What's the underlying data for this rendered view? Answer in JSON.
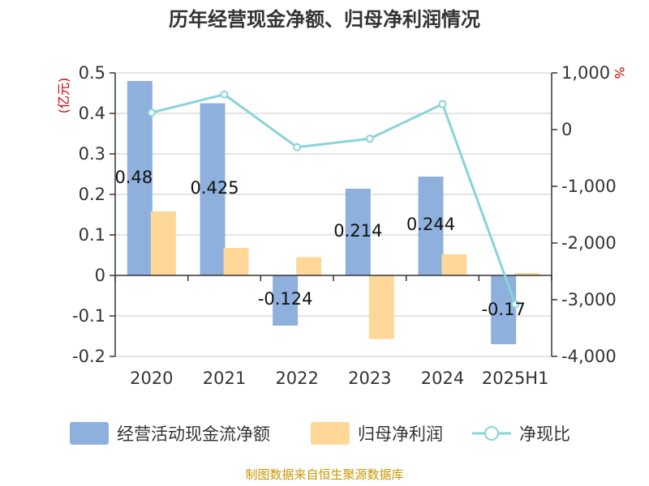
{
  "chart_data": {
    "type": "bar",
    "title": "历年经营现金净额、归母净利润情况",
    "categories": [
      "2020",
      "2021",
      "2022",
      "2023",
      "2024",
      "2025H1"
    ],
    "left_axis": {
      "unit": "(亿元)",
      "ylim": [
        -0.2,
        0.5
      ],
      "ticks": [
        0.5,
        0.4,
        0.3,
        0.2,
        0.1,
        0,
        -0.1,
        -0.2
      ],
      "tick_labels": [
        "0.5",
        "0.4",
        "0.3",
        "0.2",
        "0.1",
        "0",
        "-0.1",
        "-0.2"
      ]
    },
    "right_axis": {
      "unit": "%",
      "ylim": [
        -4000,
        1000
      ],
      "ticks": [
        1000,
        0,
        -1000,
        -2000,
        -3000,
        -4000
      ],
      "tick_labels": [
        "1,000",
        "0",
        "-1,000",
        "-2,000",
        "-3,000",
        "-4,000"
      ]
    },
    "grid": true,
    "legend_position": "bottom",
    "series": [
      {
        "name": "经营活动现金流净额",
        "type": "bar",
        "axis": "left",
        "color": "#8eb0dc",
        "values": [
          0.48,
          0.425,
          -0.124,
          0.214,
          0.244,
          -0.17
        ],
        "labels": [
          "0.48",
          "0.425",
          "-0.124",
          "0.214",
          "0.244",
          "-0.17"
        ]
      },
      {
        "name": "归母净利润",
        "type": "bar",
        "axis": "left",
        "color": "#ffd899",
        "values": [
          0.158,
          0.068,
          0.045,
          -0.157,
          0.052,
          0.006
        ]
      },
      {
        "name": "净现比",
        "type": "line",
        "axis": "right",
        "color": "#88d4d8",
        "values": [
          300,
          620,
          -310,
          -160,
          450,
          -3080
        ]
      }
    ],
    "source": "制图数据来自恒生聚源数据库"
  }
}
